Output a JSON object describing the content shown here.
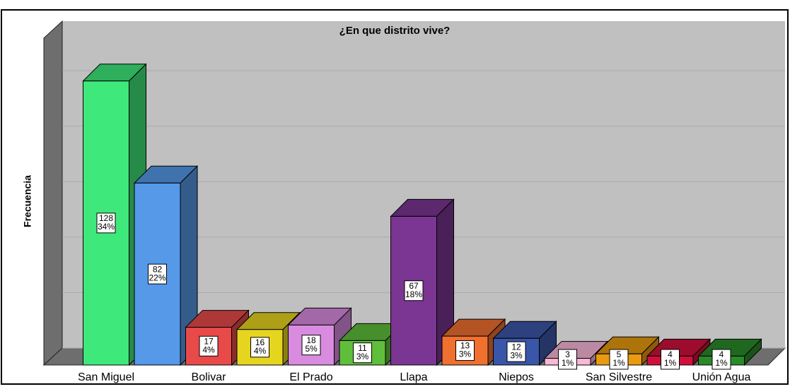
{
  "chart_data": {
    "type": "bar3d",
    "title": "¿En que distrito vive?",
    "y_label": "Frecuencia",
    "categories": [
      "San Miguel",
      null,
      "Bolivar",
      null,
      "El Prado",
      null,
      "Llapa",
      null,
      "Niepos",
      null,
      "San Silvestre",
      null,
      "Unión Agua"
    ],
    "values": [
      128,
      82,
      17,
      16,
      18,
      11,
      67,
      13,
      12,
      3,
      5,
      4,
      4
    ],
    "percentages": [
      34,
      22,
      4,
      4,
      5,
      3,
      18,
      3,
      3,
      1,
      1,
      1,
      1
    ],
    "percentage_labels": [
      "34%",
      "22%",
      "4%",
      "4%",
      "5%",
      "3%",
      "18%",
      "3%",
      "3%",
      "1%",
      "1%",
      "1%",
      "1%"
    ],
    "colors": [
      "#3fe87a",
      "#5599e8",
      "#e84a4a",
      "#e6d51e",
      "#d98be0",
      "#5fbf3a",
      "#7b3593",
      "#f07030",
      "#3a56a8",
      "#f9b8d8",
      "#e89a10",
      "#d0103a",
      "#2a8a2a"
    ],
    "ylim": [
      0,
      140
    ],
    "yticks": [
      0,
      25,
      50,
      75,
      100,
      125
    ],
    "grid": true
  }
}
